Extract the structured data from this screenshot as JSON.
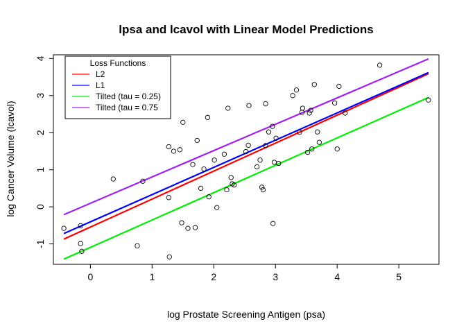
{
  "chart_data": {
    "type": "scatter",
    "title": "lpsa and lcavol with Linear Model Predictions",
    "xlabel": "log Prostate Screening Antigen (psa)",
    "ylabel": "log Cancer Volume (lcavol)",
    "xlim": [
      -0.6,
      5.65
    ],
    "ylim": [
      -1.55,
      4.1
    ],
    "x_ticks": [
      0,
      1,
      2,
      3,
      4,
      5
    ],
    "y_ticks": [
      -1,
      0,
      1,
      2,
      3,
      4
    ],
    "x_tick_labels": [
      "0",
      "1",
      "2",
      "3",
      "4",
      "5"
    ],
    "y_tick_labels": [
      "-1",
      "0",
      "1",
      "2",
      "3",
      "4"
    ],
    "points": [
      [
        -0.43,
        -0.58
      ],
      [
        -0.16,
        -0.99
      ],
      [
        -0.16,
        -0.51
      ],
      [
        -0.14,
        -1.2
      ],
      [
        0.37,
        0.75
      ],
      [
        0.76,
        -1.05
      ],
      [
        0.85,
        0.69
      ],
      [
        1.27,
        1.62
      ],
      [
        1.27,
        0.25
      ],
      [
        1.28,
        -1.35
      ],
      [
        1.35,
        1.5
      ],
      [
        1.45,
        1.54
      ],
      [
        1.48,
        -0.43
      ],
      [
        1.5,
        2.28
      ],
      [
        1.58,
        -0.58
      ],
      [
        1.66,
        1.14
      ],
      [
        1.7,
        -0.56
      ],
      [
        1.73,
        1.79
      ],
      [
        1.79,
        0.5
      ],
      [
        1.84,
        1.02
      ],
      [
        1.9,
        2.41
      ],
      [
        1.92,
        0.27
      ],
      [
        2.01,
        1.26
      ],
      [
        2.05,
        -0.02
      ],
      [
        2.17,
        1.42
      ],
      [
        2.21,
        0.46
      ],
      [
        2.23,
        2.66
      ],
      [
        2.28,
        0.79
      ],
      [
        2.3,
        0.62
      ],
      [
        2.33,
        0.59
      ],
      [
        2.52,
        1.49
      ],
      [
        2.56,
        1.66
      ],
      [
        2.57,
        2.73
      ],
      [
        2.7,
        1.08
      ],
      [
        2.75,
        1.26
      ],
      [
        2.78,
        0.53
      ],
      [
        2.8,
        0.46
      ],
      [
        2.84,
        1.65
      ],
      [
        2.84,
        2.78
      ],
      [
        2.89,
        2.02
      ],
      [
        2.95,
        2.17
      ],
      [
        2.96,
        -0.45
      ],
      [
        2.98,
        1.2
      ],
      [
        3.01,
        1.85
      ],
      [
        3.05,
        1.17
      ],
      [
        3.28,
        3.0
      ],
      [
        3.34,
        3.15
      ],
      [
        3.39,
        2.01
      ],
      [
        3.43,
        2.55
      ],
      [
        3.44,
        2.66
      ],
      [
        3.52,
        1.47
      ],
      [
        3.55,
        2.53
      ],
      [
        3.57,
        2.6
      ],
      [
        3.59,
        1.56
      ],
      [
        3.63,
        3.3
      ],
      [
        3.68,
        2.02
      ],
      [
        3.71,
        1.74
      ],
      [
        3.96,
        2.8
      ],
      [
        4.0,
        1.56
      ],
      [
        4.03,
        3.25
      ],
      [
        4.13,
        2.53
      ],
      [
        4.69,
        3.82
      ],
      [
        5.48,
        2.88
      ]
    ],
    "series": [
      {
        "name": "L2",
        "color": "#ff0000",
        "x": [
          -0.43,
          5.48
        ],
        "y": [
          -0.87,
          3.59
        ]
      },
      {
        "name": "L1",
        "color": "#0000ff",
        "x": [
          -0.43,
          5.48
        ],
        "y": [
          -0.72,
          3.62
        ]
      },
      {
        "name": "Tilted (tau = 0.25)",
        "color": "#00ee00",
        "x": [
          -0.43,
          5.48
        ],
        "y": [
          -1.41,
          2.95
        ]
      },
      {
        "name": "Tilted (tau = 0.75",
        "color": "#a020f0",
        "x": [
          -0.43,
          5.48
        ],
        "y": [
          -0.21,
          3.99
        ]
      }
    ],
    "legend": {
      "title": "Loss Functions",
      "placement": "top-left"
    },
    "grid": false
  }
}
